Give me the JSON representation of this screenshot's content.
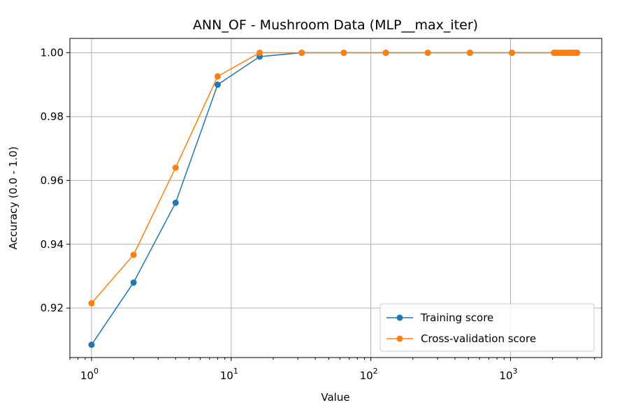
{
  "chart_data": {
    "type": "line",
    "title": "ANN_OF - Mushroom Data (MLP__max_iter)",
    "xlabel": "Value",
    "ylabel": "Accuracy (0.0 - 1.0)",
    "xscale": "log",
    "xlim": [
      0.7,
      4500
    ],
    "ylim": [
      0.9045,
      1.0045
    ],
    "grid": true,
    "legend_position": "lower-right",
    "x_ticks": [
      {
        "value": 1,
        "base": "10",
        "exp": "0"
      },
      {
        "value": 10,
        "base": "10",
        "exp": "1"
      },
      {
        "value": 100,
        "base": "10",
        "exp": "2"
      },
      {
        "value": 1000,
        "base": "10",
        "exp": "3"
      }
    ],
    "y_ticks": [
      {
        "value": 0.92,
        "label": "0.92"
      },
      {
        "value": 0.94,
        "label": "0.94"
      },
      {
        "value": 0.96,
        "label": "0.96"
      },
      {
        "value": 0.98,
        "label": "0.98"
      },
      {
        "value": 1.0,
        "label": "1.00"
      }
    ],
    "x": [
      1,
      2,
      4,
      8,
      16,
      32,
      64,
      128,
      256,
      512,
      1024,
      2048,
      2100,
      2200,
      2300,
      2400,
      2500,
      2600,
      2700,
      2800,
      2900,
      3000
    ],
    "series": [
      {
        "name": "Training score",
        "color": "#1f77b4",
        "values": [
          0.9085,
          0.928,
          0.953,
          0.99,
          0.9988,
          1.0,
          1.0,
          1.0,
          1.0,
          1.0,
          1.0,
          1.0,
          1.0,
          1.0,
          1.0,
          1.0,
          1.0,
          1.0,
          1.0,
          1.0,
          1.0,
          1.0
        ]
      },
      {
        "name": "Cross-validation score",
        "color": "#ff7f0e",
        "values": [
          0.9215,
          0.9367,
          0.964,
          0.9926,
          1.0,
          1.0,
          1.0,
          1.0,
          1.0,
          1.0,
          1.0,
          1.0,
          1.0,
          1.0,
          1.0,
          1.0,
          1.0,
          1.0,
          1.0,
          1.0,
          1.0,
          1.0
        ]
      }
    ]
  }
}
